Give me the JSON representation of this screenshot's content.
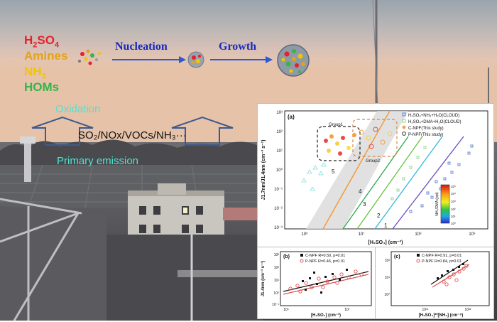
{
  "scene": {
    "species": [
      {
        "text_main": "H",
        "sub1": "2",
        "mid": "SO",
        "sub2": "4",
        "color": "#e8202a"
      },
      {
        "text_main": "Amines",
        "color": "#e3a317"
      },
      {
        "text_main": "NH",
        "sub1": "3",
        "color": "#f2c500"
      },
      {
        "text_main": "HOMs",
        "color": "#38b449"
      }
    ],
    "nucleation_label": "Nucleation",
    "growth_label": "Growth",
    "oxidation_label": "Oxidation",
    "precursors_label": "SO₂/NOx/VOCs/NH₃···",
    "primary_emission_label": "Primary emission",
    "colors": {
      "arrow_blue": "#2d58d6",
      "label_navy": "#1a2ab8",
      "cyan_text": "#4de3d0"
    }
  },
  "main_chart": {
    "panel_label": "(a)",
    "ylabel": "J1.7nm/J1.4nm (cm⁻³ s⁻¹)",
    "xlabel": "[H₂SO₄] (cm⁻³)",
    "x_ticks": [
      "10⁶",
      "10⁷",
      "10⁸",
      "10⁹"
    ],
    "y_ticks": [
      "10³",
      "10²",
      "10¹",
      "10⁰",
      "10⁻¹",
      "10⁻²",
      "10⁻³"
    ],
    "legend": [
      "H₂SO₄+NH₃+H₂O(CLOUD)",
      "H₂SO₄+DMA+H₂O(CLOUD)",
      "C-NPF(This study)",
      "P-NPF(This study)"
    ],
    "group1_label": "Group1",
    "group2_label": "Group2",
    "line_labels": [
      "1",
      "2",
      "3",
      "4",
      "5"
    ],
    "colorbar_label": "NH₃/DMA (ppt)",
    "colorbar_ticks": [
      "10⁵",
      "10⁴",
      "10³",
      "10²",
      "10¹",
      "10⁰"
    ]
  },
  "panel_b": {
    "panel_label": "(b)",
    "legend": [
      "C-NPF R=0.50, p=0.01",
      "P-NPF R=0.46, p=0.01"
    ],
    "ylabel": "J1.4nm (cm⁻³ s⁻¹)",
    "xlabel": "[H₂SO₄] (cm⁻³)",
    "x_ticks": [
      "10⁶",
      "10⁷"
    ],
    "y_ticks": [
      "10³",
      "10²",
      "10¹",
      "10⁰",
      "10⁻¹"
    ]
  },
  "panel_c": {
    "panel_label": "(c)",
    "legend": [
      "C-NPF R=0.91, p=0.01",
      "P-NPF R=0.84, p=0.01"
    ],
    "xlabel": "[H₂SO₄]²*[NH₃] (cm⁻⁹)",
    "x_ticks": [
      "10³¹",
      "10³²"
    ],
    "y_ticks": [
      "10²",
      "10¹",
      "10⁰"
    ]
  }
}
